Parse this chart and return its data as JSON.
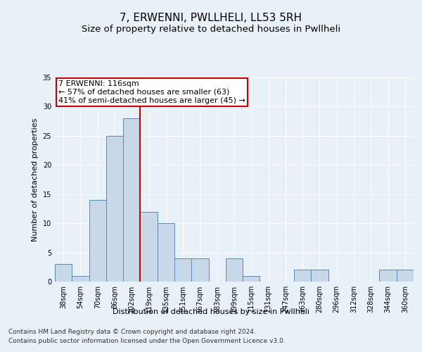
{
  "title": "7, ERWENNI, PWLLHELI, LL53 5RH",
  "subtitle": "Size of property relative to detached houses in Pwllheli",
  "xlabel": "Distribution of detached houses by size in Pwllheli",
  "ylabel": "Number of detached properties",
  "categories": [
    "38sqm",
    "54sqm",
    "70sqm",
    "86sqm",
    "102sqm",
    "119sqm",
    "135sqm",
    "151sqm",
    "167sqm",
    "183sqm",
    "199sqm",
    "215sqm",
    "231sqm",
    "247sqm",
    "263sqm",
    "280sqm",
    "296sqm",
    "312sqm",
    "328sqm",
    "344sqm",
    "360sqm"
  ],
  "values": [
    3,
    1,
    14,
    25,
    28,
    12,
    10,
    4,
    4,
    0,
    4,
    1,
    0,
    0,
    2,
    2,
    0,
    0,
    0,
    2,
    2
  ],
  "bar_color": "#c8d8e8",
  "bar_edge_color": "#5a8ab0",
  "vline_index": 4.5,
  "vline_color": "#cc0000",
  "annotation_text": "7 ERWENNI: 116sqm\n← 57% of detached houses are smaller (63)\n41% of semi-detached houses are larger (45) →",
  "annotation_box_color": "#ffffff",
  "annotation_box_edge_color": "#cc0000",
  "ylim": [
    0,
    35
  ],
  "yticks": [
    0,
    5,
    10,
    15,
    20,
    25,
    30,
    35
  ],
  "footnote_line1": "Contains HM Land Registry data © Crown copyright and database right 2024.",
  "footnote_line2": "Contains public sector information licensed under the Open Government Licence v3.0.",
  "bg_color": "#e8f0f8",
  "grid_color": "#ffffff",
  "title_fontsize": 11,
  "subtitle_fontsize": 9.5,
  "axis_label_fontsize": 8,
  "tick_fontsize": 7,
  "annotation_fontsize": 8,
  "footnote_fontsize": 6.5
}
